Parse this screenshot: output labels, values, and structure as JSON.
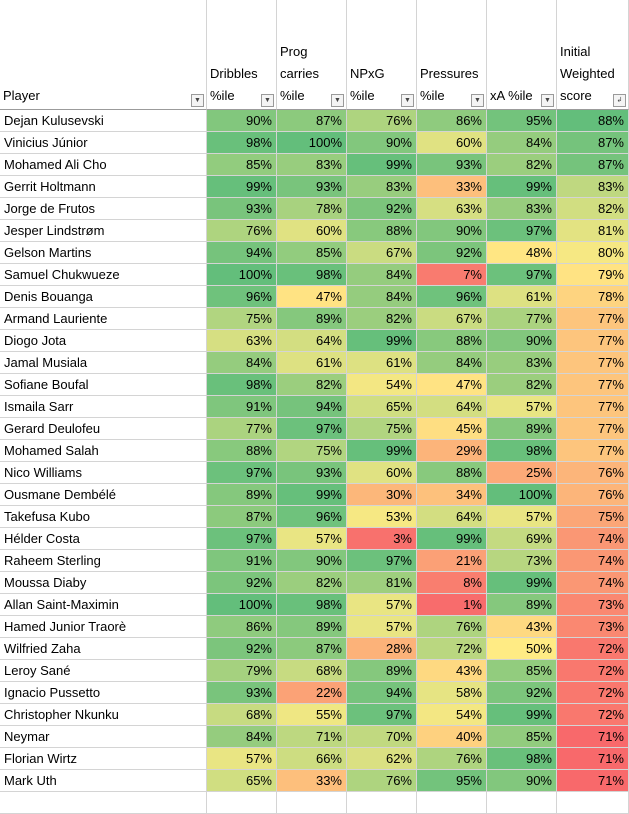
{
  "columns": [
    {
      "label": "Player",
      "filter": "dropdown"
    },
    {
      "label": "Dribbles\n%ile",
      "filter": "dropdown"
    },
    {
      "label": "Prog\ncarries\n%ile",
      "filter": "dropdown"
    },
    {
      "label": "NPxG\n%ile",
      "filter": "dropdown"
    },
    {
      "label": "Pressures\n%ile",
      "filter": "dropdown"
    },
    {
      "label": "xA %ile",
      "filter": "dropdown"
    },
    {
      "label": "Initial\nWeighted\nscore",
      "filter": "sorted-descending"
    }
  ],
  "rows": [
    [
      "Dejan Kulusevski",
      "90%",
      "87%",
      "76%",
      "86%",
      "95%",
      "88%"
    ],
    [
      "Vinicius Júnior",
      "98%",
      "100%",
      "90%",
      "60%",
      "84%",
      "87%"
    ],
    [
      "Mohamed Ali Cho",
      "85%",
      "83%",
      "99%",
      "93%",
      "82%",
      "87%"
    ],
    [
      "Gerrit Holtmann",
      "99%",
      "93%",
      "83%",
      "33%",
      "99%",
      "83%"
    ],
    [
      "Jorge de Frutos",
      "93%",
      "78%",
      "92%",
      "63%",
      "83%",
      "82%"
    ],
    [
      "Jesper Lindstrøm",
      "76%",
      "60%",
      "88%",
      "90%",
      "97%",
      "81%"
    ],
    [
      "Gelson Martins",
      "94%",
      "85%",
      "67%",
      "92%",
      "48%",
      "80%"
    ],
    [
      "Samuel Chukwueze",
      "100%",
      "98%",
      "84%",
      "7%",
      "97%",
      "79%"
    ],
    [
      "Denis Bouanga",
      "96%",
      "47%",
      "84%",
      "96%",
      "61%",
      "78%"
    ],
    [
      "Armand Lauriente",
      "75%",
      "89%",
      "82%",
      "67%",
      "77%",
      "77%"
    ],
    [
      "Diogo Jota",
      "63%",
      "64%",
      "99%",
      "88%",
      "90%",
      "77%"
    ],
    [
      "Jamal Musiala",
      "84%",
      "61%",
      "61%",
      "84%",
      "83%",
      "77%"
    ],
    [
      "Sofiane Boufal",
      "98%",
      "82%",
      "54%",
      "47%",
      "82%",
      "77%"
    ],
    [
      "Ismaila Sarr",
      "91%",
      "94%",
      "65%",
      "64%",
      "57%",
      "77%"
    ],
    [
      "Gerard Deulofeu",
      "77%",
      "97%",
      "75%",
      "45%",
      "89%",
      "77%"
    ],
    [
      "Mohamed Salah",
      "88%",
      "75%",
      "99%",
      "29%",
      "98%",
      "77%"
    ],
    [
      "Nico Williams",
      "97%",
      "93%",
      "60%",
      "88%",
      "25%",
      "76%"
    ],
    [
      "Ousmane Dembélé",
      "89%",
      "99%",
      "30%",
      "34%",
      "100%",
      "76%"
    ],
    [
      "Takefusa Kubo",
      "87%",
      "96%",
      "53%",
      "64%",
      "57%",
      "75%"
    ],
    [
      "Hélder Costa",
      "97%",
      "57%",
      "3%",
      "99%",
      "69%",
      "74%"
    ],
    [
      "Raheem Sterling",
      "91%",
      "90%",
      "97%",
      "21%",
      "73%",
      "74%"
    ],
    [
      "Moussa Diaby",
      "92%",
      "82%",
      "81%",
      "8%",
      "99%",
      "74%"
    ],
    [
      "Allan Saint-Maximin",
      "100%",
      "98%",
      "57%",
      "1%",
      "89%",
      "73%"
    ],
    [
      "Hamed Junior Traorè",
      "86%",
      "89%",
      "57%",
      "76%",
      "43%",
      "73%"
    ],
    [
      "Wilfried Zaha",
      "92%",
      "87%",
      "28%",
      "72%",
      "50%",
      "72%"
    ],
    [
      "Leroy Sané",
      "79%",
      "68%",
      "89%",
      "43%",
      "85%",
      "72%"
    ],
    [
      "Ignacio Pussetto",
      "93%",
      "22%",
      "94%",
      "58%",
      "92%",
      "72%"
    ],
    [
      "Christopher Nkunku",
      "68%",
      "55%",
      "97%",
      "54%",
      "99%",
      "72%"
    ],
    [
      "Neymar",
      "84%",
      "71%",
      "70%",
      "40%",
      "85%",
      "71%"
    ],
    [
      "Florian Wirtz",
      "57%",
      "66%",
      "62%",
      "76%",
      "98%",
      "71%"
    ],
    [
      "Mark Uth",
      "65%",
      "33%",
      "76%",
      "95%",
      "90%",
      "71%"
    ],
    [
      "",
      "",
      "",
      "",
      "",
      "",
      ""
    ]
  ],
  "color_scale": {
    "low": "#f8696b",
    "mid": "#ffeb84",
    "high": "#63be7b"
  }
}
